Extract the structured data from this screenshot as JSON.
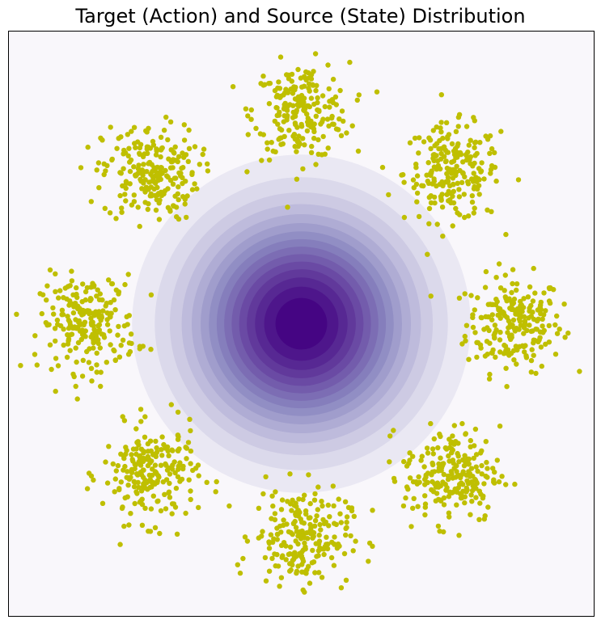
{
  "chart_data": {
    "type": "scatter",
    "title": "Target (Action) and Source (State) Distribution",
    "xlabel": "",
    "ylabel": "",
    "xlim": [
      -11,
      11
    ],
    "ylim": [
      -11,
      11
    ],
    "grid": false,
    "axes_ticks": false,
    "background": {
      "type": "contour",
      "distribution": "isotropic-gaussian",
      "center": [
        0,
        0
      ],
      "std": 2.7,
      "levels": 16,
      "colormap": "Purples",
      "color_low": "#f9f7fb",
      "color_high": "#450583"
    },
    "series": [
      {
        "kind": "gaussian-mixture-clusters",
        "color": "#bfbf00",
        "cluster_radius": 8,
        "cluster_std": 0.9,
        "points_per_cluster": 220,
        "cluster_centers": [
          [
            8,
            0
          ],
          [
            5.66,
            5.66
          ],
          [
            0,
            8
          ],
          [
            -5.66,
            5.66
          ],
          [
            -8,
            0
          ],
          [
            -5.66,
            -5.66
          ],
          [
            0,
            -8
          ],
          [
            5.66,
            -5.66
          ]
        ]
      }
    ]
  }
}
